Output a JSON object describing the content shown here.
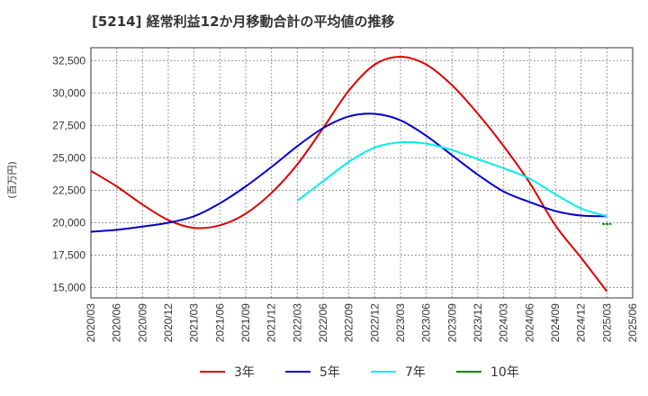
{
  "chart_data": {
    "type": "line",
    "title": "[5214]  経常利益12か月移動合計の平均値の推移",
    "ylabel": "(百万円)",
    "xlabel": "",
    "ylim": [
      14200,
      33500
    ],
    "yticks": [
      15000,
      17500,
      20000,
      22500,
      25000,
      27500,
      30000,
      32500
    ],
    "ytick_labels": [
      "15,000",
      "17,500",
      "20,000",
      "22,500",
      "25,000",
      "27,500",
      "30,000",
      "32,500"
    ],
    "x_categories": [
      "2020/03",
      "2020/06",
      "2020/09",
      "2020/12",
      "2021/03",
      "2021/06",
      "2021/09",
      "2021/12",
      "2022/03",
      "2022/06",
      "2022/09",
      "2022/12",
      "2023/03",
      "2023/06",
      "2023/09",
      "2023/12",
      "2024/03",
      "2024/06",
      "2024/09",
      "2024/12",
      "2025/03",
      "2025/06"
    ],
    "grid": true,
    "legend_position": "bottom",
    "series": [
      {
        "name": "3年",
        "color": "#dd0000",
        "start_index": 0,
        "values": [
          24000,
          22800,
          21400,
          20200,
          19600,
          19800,
          20700,
          22300,
          24500,
          27300,
          30200,
          32200,
          32800,
          32200,
          30600,
          28400,
          25900,
          23100,
          19800,
          17300,
          14700
        ]
      },
      {
        "name": "5年",
        "color": "#0000cc",
        "start_index": 0,
        "values": [
          19300,
          19450,
          19700,
          20000,
          20500,
          21500,
          22800,
          24300,
          25900,
          27300,
          28200,
          28400,
          27900,
          26700,
          25200,
          23700,
          22400,
          21600,
          20900,
          20550,
          20500
        ]
      },
      {
        "name": "7年",
        "color": "#00eeee",
        "start_index": 8,
        "values": [
          21700,
          23200,
          24700,
          25800,
          26200,
          26100,
          25600,
          24900,
          24200,
          23400,
          22200,
          21100,
          20500
        ]
      },
      {
        "name": "10年",
        "color": "#008800",
        "start_index": 20,
        "values": [
          19900
        ]
      }
    ]
  }
}
